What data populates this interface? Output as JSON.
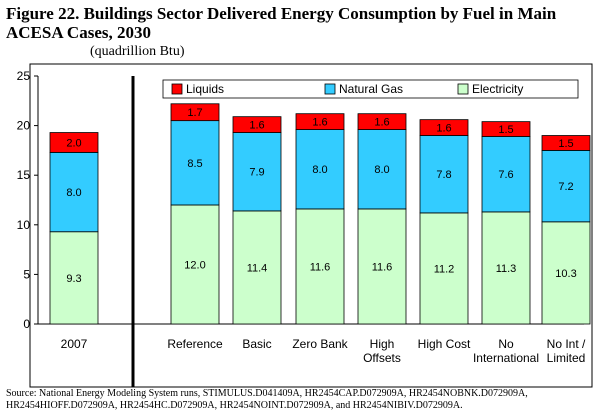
{
  "figure_title": "Figure 22.  Buildings Sector Delivered Energy Consumption by Fuel in Main ACESA Cases, 2030",
  "units_label": "(quadrillion Btu)",
  "source_note": "Source:  National Energy Modeling System runs, STIMULUS.D041409A, HR2454CAP.D072909A, HR2454NOBNK.D072909A, HR2454HIOFF.D072909A, HR2454HC.D072909A, HR2454NOINT.D072909A, and HR2454NIBIV.D072909A.",
  "colors": {
    "liquids": "#ff0000",
    "natural_gas": "#33ccff",
    "electricity": "#ccffcc",
    "separator": "#000000"
  },
  "chart_data": {
    "type": "bar",
    "stacked": true,
    "categories": [
      "2007",
      "Reference",
      "Basic",
      "Zero Bank",
      "High Offsets",
      "High Cost",
      "No International",
      "No Int / Limited"
    ],
    "category_label_lines": [
      [
        "2007"
      ],
      [
        "Reference"
      ],
      [
        "Basic"
      ],
      [
        "Zero Bank"
      ],
      [
        "High",
        "Offsets"
      ],
      [
        "High Cost"
      ],
      [
        "No",
        "International"
      ],
      [
        "No Int /",
        "Limited"
      ]
    ],
    "series": [
      {
        "name": "Electricity",
        "key": "electricity",
        "values": [
          9.3,
          12.0,
          11.4,
          11.6,
          11.6,
          11.2,
          11.3,
          10.3
        ]
      },
      {
        "name": "Natural Gas",
        "key": "natural_gas",
        "values": [
          8.0,
          8.5,
          7.9,
          8.0,
          8.0,
          7.8,
          7.6,
          7.2
        ]
      },
      {
        "name": "Liquids",
        "key": "liquids",
        "values": [
          2.0,
          1.7,
          1.6,
          1.6,
          1.6,
          1.6,
          1.5,
          1.5
        ]
      }
    ],
    "legend_order": [
      "Liquids",
      "Natural Gas",
      "Electricity"
    ],
    "legend_position": "top",
    "ylim": [
      0,
      25
    ],
    "yticks": [
      0,
      5,
      10,
      15,
      20,
      25
    ],
    "ytick_labels": [
      "0",
      "5",
      "10",
      "15",
      "20",
      "25"
    ],
    "xlabel": "",
    "ylabel": "",
    "grid": false,
    "separator_after_category": "2007"
  }
}
